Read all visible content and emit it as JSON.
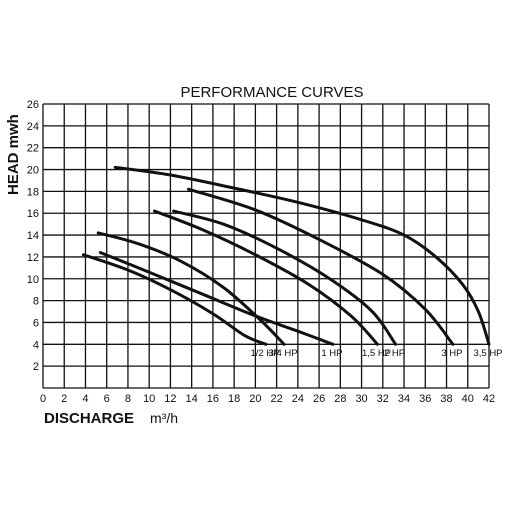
{
  "chart_data": {
    "type": "line",
    "title": "PERFORMANCE CURVES",
    "xlabel": "DISCHARGE",
    "xunit": "m³/h",
    "ylabel": "HEAD mwh",
    "xlim": [
      0,
      42
    ],
    "ylim": [
      0,
      26
    ],
    "x_ticks": [
      0,
      2,
      4,
      6,
      8,
      10,
      12,
      14,
      16,
      18,
      20,
      22,
      24,
      26,
      28,
      30,
      32,
      34,
      36,
      38,
      40,
      42
    ],
    "y_ticks": [
      2,
      4,
      6,
      8,
      10,
      12,
      14,
      16,
      18,
      20,
      22,
      24,
      26
    ],
    "grid": true,
    "series": [
      {
        "name": "1/2 HP",
        "x": [
          3.8,
          8,
          12,
          16,
          19,
          21
        ],
        "y": [
          12.2,
          10.8,
          9.0,
          6.8,
          4.8,
          4.0
        ]
      },
      {
        "name": "3/4 HP",
        "x": [
          5.2,
          9,
          13,
          17,
          20.5,
          22.7
        ],
        "y": [
          14.2,
          13.2,
          11.6,
          9.2,
          6.2,
          4.0
        ]
      },
      {
        "name": "1 HP",
        "x": [
          5.4,
          10,
          15,
          20,
          24,
          27.3
        ],
        "y": [
          12.4,
          10.6,
          8.6,
          6.6,
          5.2,
          4.0
        ]
      },
      {
        "name": "1,5 HP",
        "x": [
          10.5,
          15,
          20,
          25,
          29,
          31.5
        ],
        "y": [
          16.2,
          14.5,
          12.2,
          9.5,
          6.6,
          4.0
        ]
      },
      {
        "name": "2 HP",
        "x": [
          12.3,
          17,
          22,
          27,
          31,
          33.2
        ],
        "y": [
          16.2,
          15.0,
          12.8,
          10.0,
          7.0,
          4.0
        ]
      },
      {
        "name": "3 HP",
        "x": [
          13.7,
          20,
          26,
          32,
          36,
          38.6
        ],
        "y": [
          18.2,
          16.3,
          13.6,
          10.4,
          7.2,
          4.0
        ]
      },
      {
        "name": "3,5 HP",
        "x": [
          6.8,
          12,
          18,
          24,
          30,
          34,
          37,
          39.5,
          41,
          42
        ],
        "y": [
          20.2,
          19.5,
          18.3,
          17.0,
          15.4,
          14.0,
          12.0,
          9.5,
          7.0,
          4.0
        ]
      }
    ]
  }
}
